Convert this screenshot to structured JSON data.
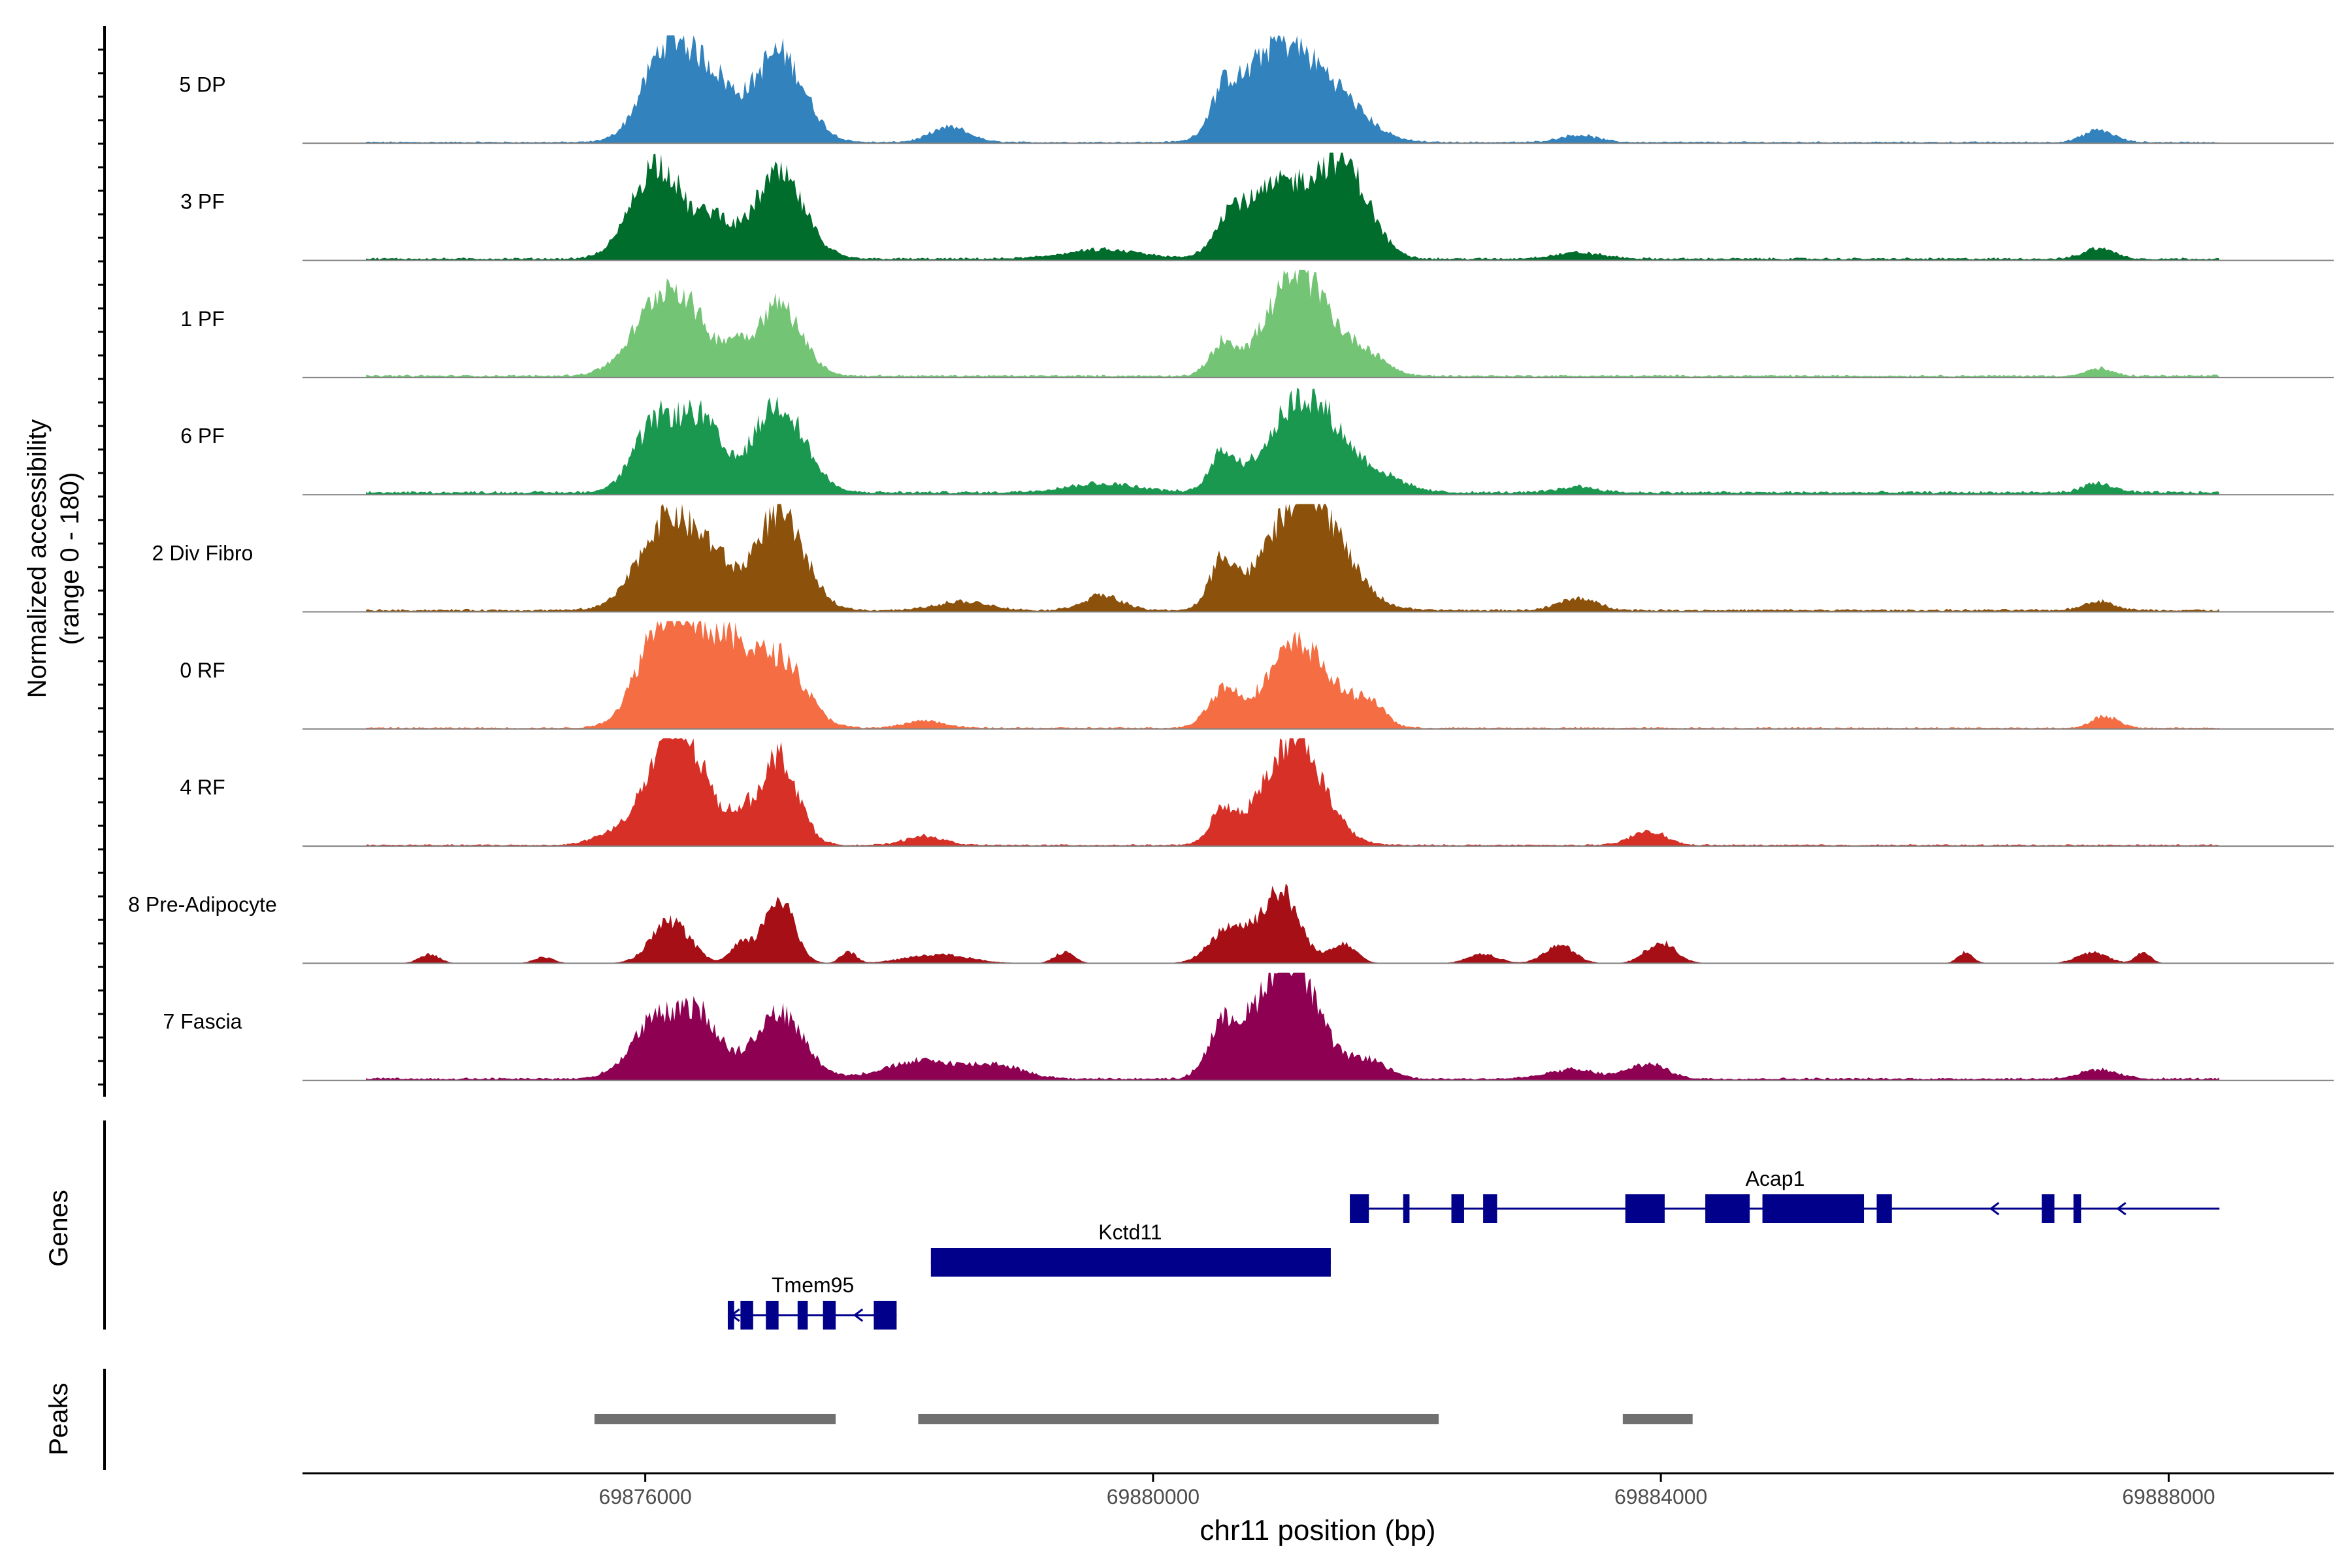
{
  "chart_data": {
    "type": "area",
    "title": "",
    "chromosome": "chr11",
    "xlabel": "chr11 position (bp)",
    "ylabel_line1": "Normalized accessibility",
    "ylabel_line2": "(range 0 - 180)",
    "xlim": [
      69873300,
      69889300
    ],
    "ylim": [
      0,
      180
    ],
    "x_ticks": [
      69876000,
      69880000,
      69884000,
      69888000
    ],
    "x_tick_labels": [
      "69876000",
      "69880000",
      "69884000",
      "69888000"
    ],
    "track_range": [
      69873800,
      69888400
    ],
    "tracks": [
      {
        "name": "5 DP",
        "color": "#3182BD",
        "baseline": 2,
        "peaks": [
          [
            69876200,
            170,
            200
          ],
          [
            69876550,
            80,
            150
          ],
          [
            69877050,
            150,
            200
          ],
          [
            69878400,
            25,
            150
          ],
          [
            69880550,
            60,
            100
          ],
          [
            69880950,
            150,
            250
          ],
          [
            69881400,
            80,
            250
          ],
          [
            69883350,
            12,
            150
          ],
          [
            69887450,
            20,
            120
          ]
        ]
      },
      {
        "name": "3 PF",
        "color": "#006D2C",
        "baseline": 3,
        "peaks": [
          [
            69876100,
            160,
            200
          ],
          [
            69876550,
            60,
            120
          ],
          [
            69877050,
            140,
            200
          ],
          [
            69879600,
            15,
            300
          ],
          [
            69880600,
            55,
            120
          ],
          [
            69881000,
            120,
            250
          ],
          [
            69881500,
            150,
            200
          ],
          [
            69883350,
            10,
            200
          ],
          [
            69887450,
            18,
            120
          ]
        ]
      },
      {
        "name": "1 PF",
        "color": "#74C476",
        "baseline": 3,
        "peaks": [
          [
            69876200,
            150,
            250
          ],
          [
            69876700,
            30,
            80
          ],
          [
            69877050,
            120,
            180
          ],
          [
            69880550,
            50,
            100
          ],
          [
            69881150,
            170,
            250
          ],
          [
            69881700,
            30,
            150
          ],
          [
            69887450,
            12,
            100
          ]
        ]
      },
      {
        "name": "6 PF",
        "color": "#1A9850",
        "baseline": 4,
        "peaks": [
          [
            69876100,
            120,
            180
          ],
          [
            69876450,
            110,
            150
          ],
          [
            69877050,
            150,
            200
          ],
          [
            69879600,
            15,
            300
          ],
          [
            69880550,
            60,
            100
          ],
          [
            69881200,
            160,
            280
          ],
          [
            69881800,
            20,
            200
          ],
          [
            69883350,
            10,
            150
          ],
          [
            69887450,
            15,
            120
          ]
        ]
      },
      {
        "name": "2 Div Fibro",
        "color": "#8C510A",
        "baseline": 3,
        "peaks": [
          [
            69876200,
            160,
            230
          ],
          [
            69876550,
            50,
            120
          ],
          [
            69877050,
            160,
            200
          ],
          [
            69878500,
            15,
            200
          ],
          [
            69879600,
            25,
            150
          ],
          [
            69880550,
            80,
            100
          ],
          [
            69881200,
            200,
            280
          ],
          [
            69883350,
            20,
            150
          ],
          [
            69887450,
            15,
            120
          ]
        ]
      },
      {
        "name": "0 RF",
        "color": "#F46D43",
        "baseline": 2,
        "peaks": [
          [
            69876150,
            180,
            200
          ],
          [
            69876500,
            120,
            180
          ],
          [
            69876750,
            60,
            120
          ],
          [
            69877050,
            120,
            200
          ],
          [
            69878200,
            12,
            150
          ],
          [
            69880550,
            60,
            120
          ],
          [
            69881150,
            140,
            250
          ],
          [
            69881700,
            40,
            120
          ],
          [
            69887500,
            20,
            100
          ]
        ]
      },
      {
        "name": "4 RF",
        "color": "#D73027",
        "baseline": 2,
        "peaks": [
          [
            69875700,
            12,
            150
          ],
          [
            69876250,
            190,
            230
          ],
          [
            69876750,
            30,
            80
          ],
          [
            69877050,
            150,
            150
          ],
          [
            69878200,
            15,
            150
          ],
          [
            69880550,
            55,
            100
          ],
          [
            69881100,
            180,
            230
          ],
          [
            69883900,
            25,
            130
          ]
        ]
      },
      {
        "name": "8 Pre-Adipocyte",
        "color": "#A50F15",
        "baseline": 0,
        "peaks": [
          [
            69874300,
            15,
            80
          ],
          [
            69875200,
            10,
            80
          ],
          [
            69876200,
            70,
            150
          ],
          [
            69876750,
            30,
            80
          ],
          [
            69877050,
            110,
            120
          ],
          [
            69877600,
            20,
            60
          ],
          [
            69878300,
            15,
            250
          ],
          [
            69879300,
            18,
            80
          ],
          [
            69880600,
            60,
            150
          ],
          [
            69881000,
            120,
            150
          ],
          [
            69881500,
            35,
            100
          ],
          [
            69882600,
            15,
            120
          ],
          [
            69883200,
            30,
            120
          ],
          [
            69884000,
            35,
            120
          ],
          [
            69886400,
            18,
            60
          ],
          [
            69887400,
            18,
            120
          ],
          [
            69887800,
            18,
            60
          ]
        ]
      },
      {
        "name": "7 Fascia",
        "color": "#8E0152",
        "baseline": 3,
        "peaks": [
          [
            69876100,
            100,
            200
          ],
          [
            69876450,
            90,
            150
          ],
          [
            69877050,
            110,
            200
          ],
          [
            69878200,
            30,
            300
          ],
          [
            69878800,
            20,
            200
          ],
          [
            69880550,
            80,
            120
          ],
          [
            69881050,
            210,
            230
          ],
          [
            69881700,
            30,
            150
          ],
          [
            69883300,
            15,
            200
          ],
          [
            69883900,
            25,
            150
          ],
          [
            69887450,
            15,
            150
          ]
        ]
      }
    ],
    "genes": [
      {
        "name": "Acap1",
        "strand": "-",
        "start": 69881550,
        "end": 69888400,
        "label_x": 69884900,
        "exons": [
          [
            69881550,
            69881700
          ],
          [
            69881970,
            69882020
          ],
          [
            69882350,
            69882450
          ],
          [
            69882600,
            69882710
          ],
          [
            69883720,
            69884030
          ],
          [
            69884350,
            69884700
          ],
          [
            69884800,
            69885600
          ],
          [
            69885700,
            69885820
          ],
          [
            69887000,
            69887100
          ],
          [
            69887250,
            69887310
          ]
        ],
        "arrows": [
          69886600,
          69887600
        ]
      },
      {
        "name": "Kctd11",
        "strand": "+",
        "start": 69878250,
        "end": 69881400,
        "label_x": 69879820,
        "exons": [
          [
            69878250,
            69881400
          ]
        ],
        "arrows": []
      },
      {
        "name": "Tmem95",
        "strand": "-",
        "start": 69876650,
        "end": 69877980,
        "label_x": 69877320,
        "exons": [
          [
            69876650,
            69876700
          ],
          [
            69876750,
            69876850
          ],
          [
            69876950,
            69877050
          ],
          [
            69877200,
            69877280
          ],
          [
            69877400,
            69877500
          ],
          [
            69877800,
            69877980
          ]
        ],
        "arrows": [
          69876680,
          69877650
        ]
      }
    ],
    "peaks_track": [
      [
        69875600,
        69877500
      ],
      [
        69878150,
        69882250
      ],
      [
        69883700,
        69884250
      ]
    ],
    "panel_labels": {
      "genes": "Genes",
      "peaks": "Peaks"
    },
    "peak_color": "#707070",
    "gene_color": "#00008B"
  }
}
